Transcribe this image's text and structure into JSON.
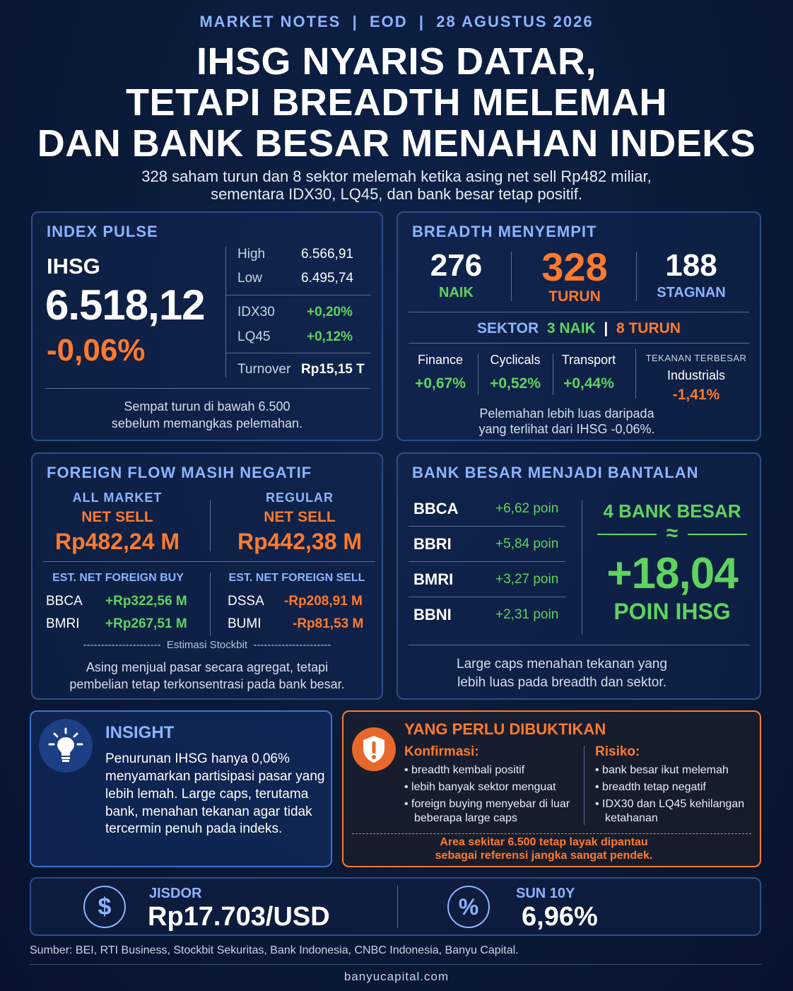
{
  "header": {
    "kicker": "MARKET NOTES  |  EOD  |  28 AGUSTUS 2026",
    "title_lines": [
      "IHSG NYARIS DATAR,",
      "TETAPI BREADTH MELEMAH",
      "DAN BANK BESAR MENAHAN INDEKS"
    ],
    "subtitle_lines": [
      "328 saham turun dan 8 sektor melemah ketika asing net sell Rp482 miliar,",
      "sementara IDX30, LQ45, dan bank besar tetap positif."
    ]
  },
  "index_pulse": {
    "title": "INDEX PULSE",
    "index_name": "IHSG",
    "value": "6.518,12",
    "change": "-0,06%",
    "stats": [
      {
        "label": "High",
        "value": "6.566,91"
      },
      {
        "label": "Low",
        "value": "6.495,74"
      },
      {
        "label": "IDX30",
        "value": "+0,20%"
      },
      {
        "label": "LQ45",
        "value": "+0,12%"
      },
      {
        "label": "Turnover",
        "value": "Rp15,15 T"
      }
    ],
    "note_lines": [
      "Sempat turun di bawah 6.500",
      "sebelum memangkas pelemahan."
    ]
  },
  "breadth": {
    "title": "BREADTH MENYEMPIT",
    "up": {
      "value": "276",
      "label": "NAIK"
    },
    "down": {
      "value": "328",
      "label": "TURUN"
    },
    "flat": {
      "value": "188",
      "label": "STAGNAN"
    },
    "sector_label": "SEKTOR",
    "sector_up": "3 NAIK",
    "sector_sep": "|",
    "sector_down": "8 TURUN",
    "sectors": [
      {
        "name": "Finance",
        "change": "+0,67%"
      },
      {
        "name": "Cyclicals",
        "change": "+0,52%"
      },
      {
        "name": "Transport",
        "change": "+0,44%"
      }
    ],
    "worst_label": "TEKANAN TERBESAR",
    "worst_name": "Industrials",
    "worst_change": "-1,41%",
    "note_lines": [
      "Pelemahan lebih luas daripada",
      "yang terlihat dari IHSG -0,06%."
    ]
  },
  "foreign_flow": {
    "title": "FOREIGN FLOW MASIH NEGATIF",
    "all_market": {
      "label": "ALL MARKET",
      "sub": "NET SELL",
      "value": "Rp482,24 M"
    },
    "regular": {
      "label": "REGULAR",
      "sub": "NET SELL",
      "value": "Rp442,38 M"
    },
    "buy_title": "EST. NET FOREIGN BUY",
    "buys": [
      {
        "ticker": "BBCA",
        "value": "+Rp322,56 M"
      },
      {
        "ticker": "BMRI",
        "value": "+Rp267,51 M"
      }
    ],
    "sell_title": "EST. NET FOREIGN SELL",
    "sells": [
      {
        "ticker": "DSSA",
        "value": "-Rp208,91 M"
      },
      {
        "ticker": "BUMI",
        "value": "-Rp81,53 M"
      }
    ],
    "source_note": "----------------------  Estimasi Stockbit  ----------------------",
    "note_lines": [
      "Asing menjual pasar secara agregat, tetapi",
      "pembelian tetap terkonsentrasi pada bank besar."
    ]
  },
  "big_banks": {
    "title": "BANK BESAR MENJADI BANTALAN",
    "banks": [
      {
        "ticker": "BBCA",
        "value": "+6,62 poin"
      },
      {
        "ticker": "BBRI",
        "value": "+5,84 poin"
      },
      {
        "ticker": "BMRI",
        "value": "+3,27 poin"
      },
      {
        "ticker": "BBNI",
        "value": "+2,31 poin"
      }
    ],
    "summary_label": "4 BANK BESAR",
    "approx": "≈",
    "summary_value": "+18,04",
    "summary_unit": "POIN IHSG",
    "note_lines": [
      "Large caps menahan tekanan yang",
      "lebih luas pada breadth dan sektor."
    ]
  },
  "insight": {
    "title": "INSIGHT",
    "icon": "lightbulb-icon",
    "lines": [
      "Penurunan IHSG hanya 0,06%",
      "menyamarkan partisipasi pasar yang",
      "lebih lemah. Large caps, terutama",
      "bank, menahan tekanan agar tidak",
      "tercermin penuh pada indeks."
    ]
  },
  "to_prove": {
    "title": "YANG PERLU DIBUKTIKAN",
    "icon": "shield-alert-icon",
    "confirm_title": "Konfirmasi:",
    "confirm_items": [
      [
        "breadth kembali positif"
      ],
      [
        "lebih banyak sektor menguat"
      ],
      [
        "foreign buying menyebar di luar",
        "beberapa large caps"
      ]
    ],
    "risk_title": "Risiko:",
    "risk_items": [
      [
        "bank besar ikut melemah"
      ],
      [
        "breadth tetap negatif"
      ],
      [
        "IDX30 dan LQ45 kehilangan",
        "ketahanan"
      ]
    ],
    "footer_lines": [
      "Area sekitar 6.500 tetap layak dipantau",
      "sebagai referensi jangka sangat pendek."
    ]
  },
  "macro": {
    "jisdor": {
      "icon": "dollar-icon",
      "label": "JISDOR",
      "value": "Rp17.703/USD"
    },
    "sun": {
      "icon": "percent-icon",
      "label": "SUN 10Y",
      "value": "6,96%"
    }
  },
  "footer": {
    "source": "Sumber: BEI, RTI Business, Stockbit Sekuritas, Bank Indonesia, CNBC Indonesia, Banyu Capital.",
    "site": "banyucapital.com"
  },
  "colors": {
    "accent_blue": "#8db4ff",
    "positive": "#5fd35f",
    "negative": "#ff7a2e",
    "background": "#0a1a38"
  }
}
